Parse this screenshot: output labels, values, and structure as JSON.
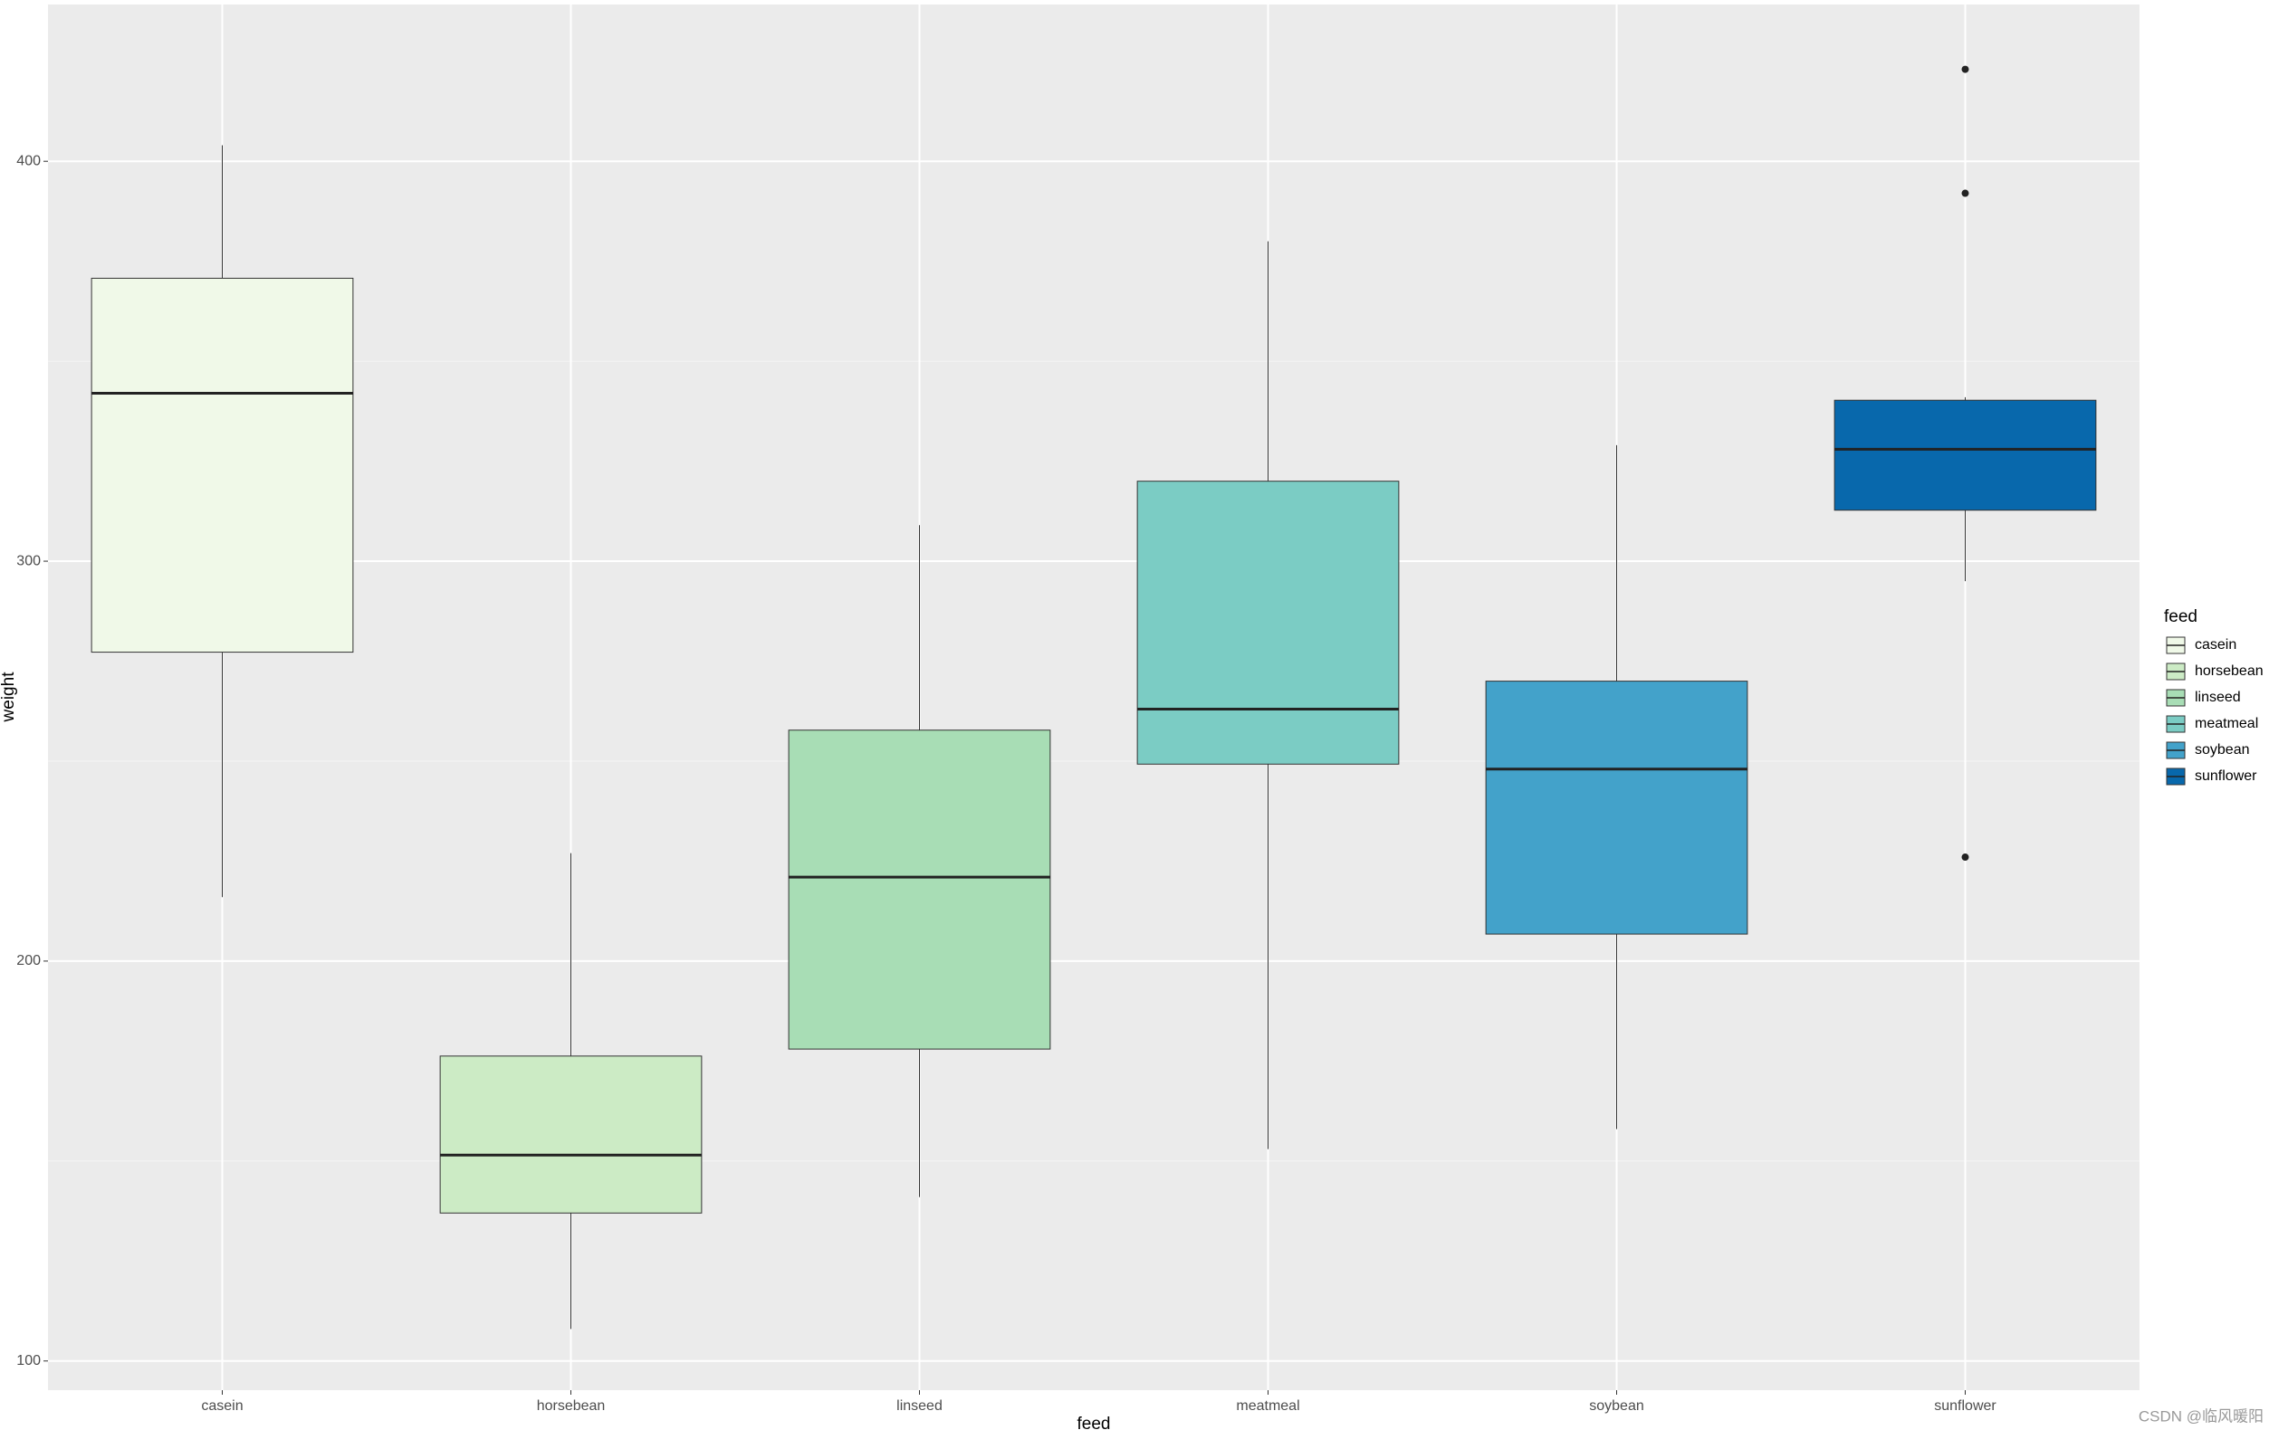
{
  "chart_data": {
    "type": "box",
    "x_label": "feed",
    "y_label": "weight",
    "legend_title": "feed",
    "categories": [
      "casein",
      "horsebean",
      "linseed",
      "meatmeal",
      "soybean",
      "sunflower"
    ],
    "colors": [
      "#f0f9e8",
      "#ccebc5",
      "#a8ddb5",
      "#7bccc4",
      "#43a2ca",
      "#0868ac"
    ],
    "boxes": [
      {
        "min": 216,
        "q1": 277.25,
        "median": 342,
        "q3": 370.75,
        "max": 404,
        "outliers": []
      },
      {
        "min": 108,
        "q1": 137,
        "median": 151.5,
        "q3": 176.25,
        "max": 227,
        "outliers": []
      },
      {
        "min": 141,
        "q1": 178,
        "median": 221,
        "q3": 257.75,
        "max": 309,
        "outliers": []
      },
      {
        "min": 153,
        "q1": 249.25,
        "median": 263,
        "q3": 320,
        "max": 380,
        "outliers": []
      },
      {
        "min": 158,
        "q1": 206.75,
        "median": 248,
        "q3": 270,
        "max": 329,
        "outliers": []
      },
      {
        "min": 295,
        "q1": 312.75,
        "median": 328,
        "q3": 340.25,
        "max": 341,
        "outliers": [
          423,
          392,
          226
        ]
      }
    ],
    "ylim": [
      92.7,
      439.2
    ],
    "yticks": [
      100,
      200,
      300,
      400
    ],
    "grid": true,
    "legend_position": "right"
  },
  "watermark": "CSDN @临风暖阳"
}
